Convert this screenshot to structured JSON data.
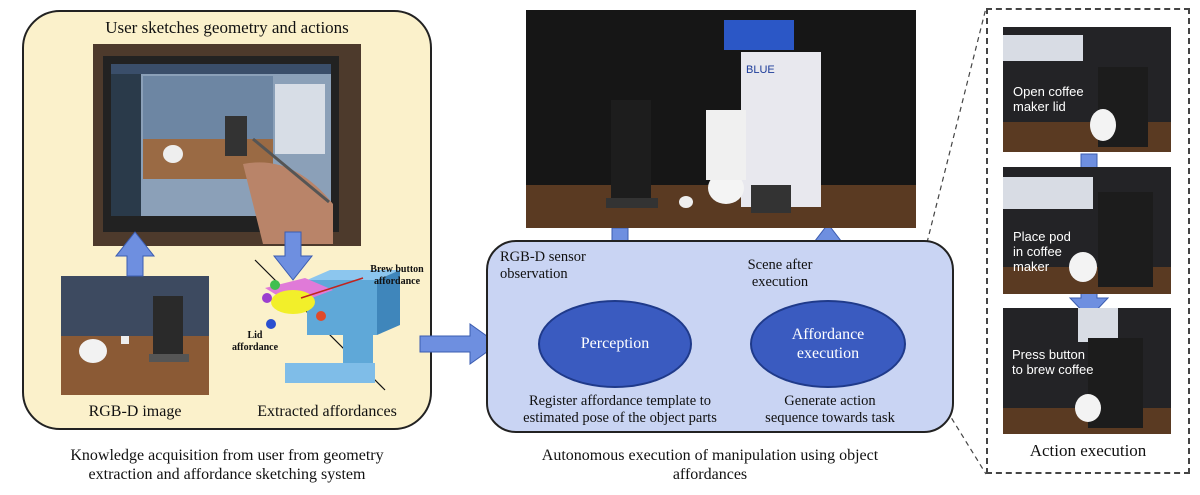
{
  "left_panel": {
    "title": "User sketches geometry and actions",
    "rgbd_label": "RGB-D image",
    "extracted_label": "Extracted affordances",
    "brew_button_label": "Brew button\naffordance",
    "lid_label": "Lid\naffordance",
    "caption": "Knowledge acquisition from user from geometry\nextraction and affordance sketching system"
  },
  "middle_panel": {
    "observation_label": "RGB-D sensor\nobservation",
    "scene_after_label": "Scene after\nexecution",
    "perception_label": "Perception",
    "execution_label": "Affordance\nexecution",
    "register_text": "Register affordance template to\nestimated pose of the object parts",
    "generate_text": "Generate action\nsequence towards task",
    "caption": "Autonomous execution of manipulation using object\naffordances",
    "robot_banner": "BLUE"
  },
  "right_panel": {
    "step1": "Open coffee\nmaker lid",
    "step2": "Place pod\nin coffee\nmaker",
    "step3": "Press button\nto brew coffee",
    "caption": "Action execution"
  },
  "colors": {
    "panel_left_bg": "#fbf1cb",
    "panel_mid_bg": "#c9d4f3",
    "arrow": "#6e8fe0",
    "ellipse": "#3a5bc0"
  }
}
